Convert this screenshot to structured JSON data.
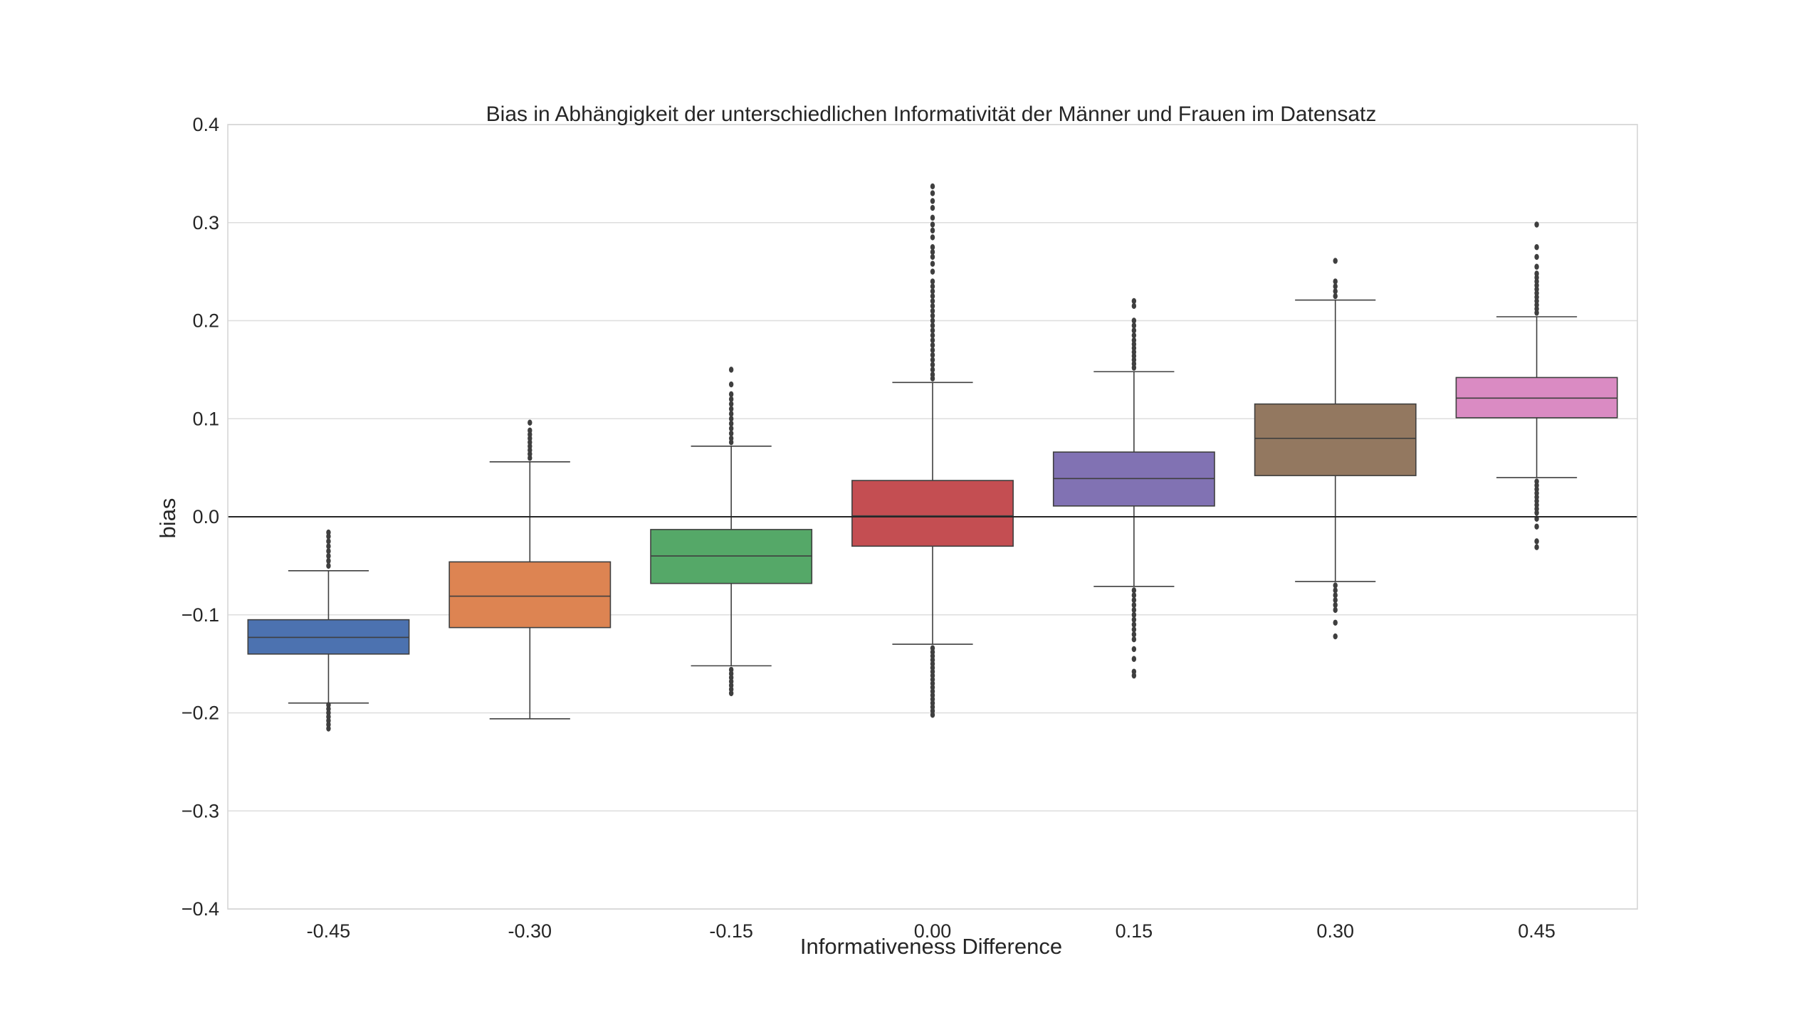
{
  "chart_data": {
    "type": "boxplot",
    "title": "Bias in Abhängigkeit der unterschiedlichen Informativität der Männer und Frauen im Datensatz",
    "xlabel": "Informativeness Difference",
    "ylabel": "bias",
    "ylim": [
      -0.4,
      0.4
    ],
    "yticks": [
      -0.4,
      -0.3,
      -0.2,
      -0.1,
      0.0,
      0.1,
      0.2,
      0.3,
      0.4
    ],
    "ytick_labels": [
      "−0.4",
      "−0.3",
      "−0.2",
      "−0.1",
      "0.0",
      "0.1",
      "0.2",
      "0.3",
      "0.4"
    ],
    "grid": true,
    "reference_line_y": 0.0,
    "categories": [
      "-0.45",
      "-0.30",
      "-0.15",
      "0.00",
      "0.15",
      "0.30",
      "0.45"
    ],
    "series": [
      {
        "category": "-0.45",
        "color": "#4c72b0",
        "q1": -0.14,
        "median": -0.123,
        "q3": -0.105,
        "whisker_low": -0.19,
        "whisker_high": -0.055,
        "outliers_low": [
          -0.192,
          -0.196,
          -0.2,
          -0.204,
          -0.208,
          -0.212,
          -0.216
        ],
        "outliers_high": [
          -0.05,
          -0.045,
          -0.04,
          -0.035,
          -0.03,
          -0.025,
          -0.02,
          -0.016
        ]
      },
      {
        "category": "-0.30",
        "color": "#dd8452",
        "q1": -0.113,
        "median": -0.081,
        "q3": -0.046,
        "whisker_low": -0.206,
        "whisker_high": 0.056,
        "outliers_low": [],
        "outliers_high": [
          0.06,
          0.064,
          0.068,
          0.072,
          0.076,
          0.08,
          0.084,
          0.088,
          0.096
        ]
      },
      {
        "category": "-0.15",
        "color": "#55a868",
        "q1": -0.068,
        "median": -0.04,
        "q3": -0.013,
        "whisker_low": -0.152,
        "whisker_high": 0.072,
        "outliers_low": [
          -0.156,
          -0.16,
          -0.164,
          -0.168,
          -0.172,
          -0.176,
          -0.18
        ],
        "outliers_high": [
          0.076,
          0.08,
          0.085,
          0.09,
          0.095,
          0.1,
          0.105,
          0.11,
          0.115,
          0.12,
          0.125,
          0.135,
          0.15
        ]
      },
      {
        "category": "0.00",
        "color": "#c44e52",
        "q1": -0.03,
        "median": 0.001,
        "q3": 0.037,
        "whisker_low": -0.13,
        "whisker_high": 0.137,
        "outliers_low": [
          -0.134,
          -0.138,
          -0.142,
          -0.146,
          -0.15,
          -0.154,
          -0.158,
          -0.162,
          -0.166,
          -0.17,
          -0.174,
          -0.178,
          -0.182,
          -0.186,
          -0.19,
          -0.194,
          -0.198,
          -0.202
        ],
        "outliers_high": [
          0.141,
          0.145,
          0.15,
          0.155,
          0.16,
          0.165,
          0.17,
          0.175,
          0.18,
          0.185,
          0.19,
          0.195,
          0.2,
          0.205,
          0.21,
          0.215,
          0.22,
          0.225,
          0.23,
          0.235,
          0.24,
          0.25,
          0.258,
          0.265,
          0.27,
          0.275,
          0.285,
          0.292,
          0.298,
          0.305,
          0.315,
          0.322,
          0.33,
          0.337
        ]
      },
      {
        "category": "0.15",
        "color": "#8172b3",
        "q1": 0.011,
        "median": 0.039,
        "q3": 0.066,
        "whisker_low": -0.071,
        "whisker_high": 0.148,
        "outliers_low": [
          -0.075,
          -0.08,
          -0.085,
          -0.09,
          -0.095,
          -0.1,
          -0.105,
          -0.11,
          -0.115,
          -0.12,
          -0.125,
          -0.135,
          -0.145,
          -0.158,
          -0.162
        ],
        "outliers_high": [
          0.152,
          0.156,
          0.16,
          0.164,
          0.168,
          0.172,
          0.176,
          0.18,
          0.185,
          0.19,
          0.195,
          0.2,
          0.215,
          0.22
        ]
      },
      {
        "category": "0.30",
        "color": "#937860",
        "q1": 0.042,
        "median": 0.08,
        "q3": 0.115,
        "whisker_low": -0.066,
        "whisker_high": 0.221,
        "outliers_low": [
          -0.07,
          -0.075,
          -0.08,
          -0.085,
          -0.09,
          -0.095,
          -0.108,
          -0.122
        ],
        "outliers_high": [
          0.225,
          0.23,
          0.235,
          0.24,
          0.261
        ]
      },
      {
        "category": "0.45",
        "color": "#da8bc3",
        "q1": 0.101,
        "median": 0.121,
        "q3": 0.142,
        "whisker_low": 0.04,
        "whisker_high": 0.204,
        "outliers_low": [
          0.036,
          0.032,
          0.028,
          0.024,
          0.02,
          0.016,
          0.012,
          0.008,
          0.004,
          -0.002,
          -0.01,
          -0.025,
          -0.031
        ],
        "outliers_high": [
          0.208,
          0.212,
          0.216,
          0.22,
          0.224,
          0.228,
          0.232,
          0.236,
          0.24,
          0.244,
          0.248,
          0.255,
          0.265,
          0.275,
          0.298
        ]
      }
    ]
  }
}
